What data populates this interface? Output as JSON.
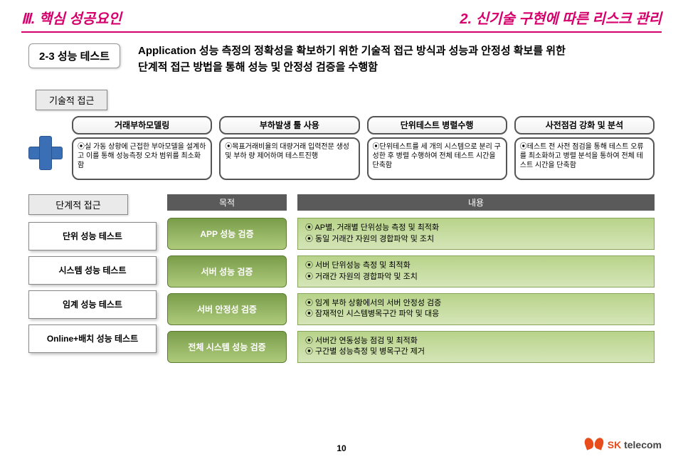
{
  "header": {
    "left": "Ⅲ. 핵심 성공요인",
    "right": "2. 신기술 구현에 따른 리스크 관리"
  },
  "section_badge": "2-3 성능 테스트",
  "intro_line1": "Application 성능 측정의 정확성을 확보하기 위한 기술적 접근 방식과 성능과 안정성 확보를 위한",
  "intro_line2": "단계적 접근 방법을 통해 성능 및 안정성 검증을 수행함",
  "tech_approach_label": "기술적 접근",
  "tech_cols": [
    {
      "title": "거래부하모델링",
      "desc": "⦿실 가동 상황에 근접한 부아모델을 설계하고 이를 통해 성능측정 오차 범위를 최소화 함"
    },
    {
      "title": "부하발생 툴 사용",
      "desc": "⦿목표거래비율의 대량거래 입력전문 생성 및 부하 량 제어하며 테스트진행"
    },
    {
      "title": "단위테스트 병렬수행",
      "desc": "⦿단위테스트를 세 개의 시스템으로 분리 구성한 후 병렬 수행하여 전체 테스트 시간을 단축함"
    },
    {
      "title": "사전점검 강화 및 분석",
      "desc": "⦿테스트 전 사전 점검을 통해 테스트 오류를 최소화하고 병렬 분석을 통하여 전체 테스트 시간을 단축함"
    }
  ],
  "stage_approach_label": "단계적 접근",
  "stage_headers": {
    "purpose": "목적",
    "content": "내용"
  },
  "stages": [
    {
      "label": "단위 성능 테스트",
      "purpose": "APP 성능 검증",
      "content1": "⦿ AP별, 거래별 단위성능 측정 및 최적화",
      "content2": "⦿ 동일 거래간 자원의 경합파악 및 조치"
    },
    {
      "label": "시스템 성능 테스트",
      "purpose": "서버 성능 검증",
      "content1": "⦿ 서버 단위성능 측정 및 최적화",
      "content2": "⦿ 거래간 자원의 경합파악 및 조치"
    },
    {
      "label": "임계 성능 테스트",
      "purpose": "서버 안정성 검증",
      "content1": "⦿ 임계 부하 상황에서의 서버 안정성 검증",
      "content2": "⦿ 잠재적인 시스템병목구간 파악 및 대응"
    },
    {
      "label": "Online+배치 성능 테스트",
      "purpose": "전체 시스템 성능 검증",
      "content1": "⦿ 서버간 연동성능 점검 및 최적화",
      "content2": "⦿ 구간별 성능측정 및 병목구간 제거"
    }
  ],
  "page_number": "10",
  "logo_text_sk": "SK",
  "logo_text_telecom": " telecom"
}
